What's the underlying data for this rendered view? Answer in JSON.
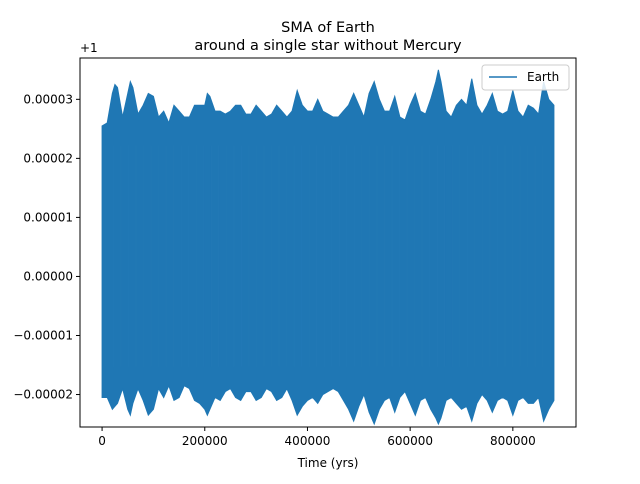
{
  "chart_data": {
    "type": "line",
    "title": "SMA of Earth",
    "subtitle": "around a single star without Mercury",
    "xlabel": "Time (yrs)",
    "ylabel": "",
    "offset_label": "+1",
    "xlim": [
      -43000,
      923000
    ],
    "ylim": [
      -2.55e-05,
      3.7e-05
    ],
    "x_ticks": [
      {
        "value": 0,
        "label": "0"
      },
      {
        "value": 200000,
        "label": "200000"
      },
      {
        "value": 400000,
        "label": "400000"
      },
      {
        "value": 600000,
        "label": "600000"
      },
      {
        "value": 800000,
        "label": "800000"
      }
    ],
    "y_ticks": [
      {
        "value": -2e-05,
        "label": "−0.00002"
      },
      {
        "value": -1e-05,
        "label": "−0.00001"
      },
      {
        "value": 0,
        "label": "0.00000"
      },
      {
        "value": 1e-05,
        "label": "0.00001"
      },
      {
        "value": 2e-05,
        "label": "0.00002"
      },
      {
        "value": 3e-05,
        "label": "0.00003"
      }
    ],
    "legend": {
      "position": "top-right"
    },
    "series": [
      {
        "name": "Earth",
        "color": "#1f77b4",
        "x_range": [
          0,
          880000
        ],
        "envelope": {
          "x": [
            0,
            10000,
            20000,
            25000,
            30000,
            40000,
            50000,
            55000,
            60000,
            70000,
            80000,
            90000,
            100000,
            110000,
            120000,
            130000,
            140000,
            150000,
            160000,
            170000,
            180000,
            190000,
            200000,
            205000,
            210000,
            220000,
            230000,
            240000,
            250000,
            260000,
            270000,
            280000,
            290000,
            300000,
            310000,
            320000,
            330000,
            340000,
            350000,
            360000,
            370000,
            380000,
            390000,
            400000,
            410000,
            420000,
            430000,
            440000,
            450000,
            460000,
            470000,
            480000,
            490000,
            500000,
            510000,
            520000,
            530000,
            540000,
            550000,
            560000,
            570000,
            580000,
            590000,
            600000,
            610000,
            620000,
            630000,
            640000,
            650000,
            655000,
            660000,
            670000,
            680000,
            690000,
            700000,
            710000,
            720000,
            730000,
            740000,
            750000,
            760000,
            770000,
            780000,
            790000,
            800000,
            810000,
            820000,
            830000,
            840000,
            850000,
            860000,
            870000,
            880000
          ],
          "upper": [
            2.55e-05,
            2.6e-05,
            3.1e-05,
            3.25e-05,
            3.2e-05,
            2.7e-05,
            3.1e-05,
            3.3e-05,
            3.2e-05,
            2.75e-05,
            2.9e-05,
            3.1e-05,
            3.05e-05,
            2.7e-05,
            2.8e-05,
            2.6e-05,
            2.9e-05,
            2.8e-05,
            2.7e-05,
            2.7e-05,
            2.9e-05,
            2.9e-05,
            2.9e-05,
            3.1e-05,
            3.05e-05,
            2.8e-05,
            2.8e-05,
            2.75e-05,
            2.8e-05,
            2.9e-05,
            2.9e-05,
            2.75e-05,
            2.75e-05,
            2.9e-05,
            2.8e-05,
            2.7e-05,
            2.75e-05,
            2.9e-05,
            2.8e-05,
            2.7e-05,
            2.8e-05,
            3.15e-05,
            2.9e-05,
            2.8e-05,
            2.8e-05,
            3e-05,
            2.8e-05,
            2.75e-05,
            2.7e-05,
            2.7e-05,
            2.8e-05,
            2.9e-05,
            3.1e-05,
            2.9e-05,
            2.7e-05,
            3.1e-05,
            3.3e-05,
            3e-05,
            2.8e-05,
            2.8e-05,
            3.05e-05,
            2.7e-05,
            2.65e-05,
            2.9e-05,
            3.1e-05,
            2.8e-05,
            2.75e-05,
            3e-05,
            3.3e-05,
            3.5e-05,
            3.3e-05,
            2.8e-05,
            2.7e-05,
            2.9e-05,
            3e-05,
            2.9e-05,
            3.35e-05,
            2.9e-05,
            2.75e-05,
            2.9e-05,
            3.1e-05,
            2.8e-05,
            2.75e-05,
            2.8e-05,
            3.15e-05,
            2.8e-05,
            2.7e-05,
            2.9e-05,
            2.85e-05,
            2.75e-05,
            3.3e-05,
            3e-05,
            2.9e-05
          ],
          "lower": [
            -2.05e-05,
            -2.05e-05,
            -2.25e-05,
            -2.2e-05,
            -2.15e-05,
            -1.9e-05,
            -2.25e-05,
            -2.35e-05,
            -2.15e-05,
            -1.9e-05,
            -2.1e-05,
            -2.35e-05,
            -2.25e-05,
            -1.9e-05,
            -2.05e-05,
            -1.85e-05,
            -2.1e-05,
            -2.05e-05,
            -1.85e-05,
            -1.9e-05,
            -2.1e-05,
            -2.15e-05,
            -2.25e-05,
            -2.35e-05,
            -2.25e-05,
            -2.05e-05,
            -2.1e-05,
            -1.95e-05,
            -1.9e-05,
            -2.05e-05,
            -2.1e-05,
            -1.95e-05,
            -1.95e-05,
            -2.1e-05,
            -2.05e-05,
            -1.9e-05,
            -1.95e-05,
            -2.1e-05,
            -2.05e-05,
            -1.9e-05,
            -2.1e-05,
            -2.35e-05,
            -2.2e-05,
            -2.1e-05,
            -2.05e-05,
            -2.15e-05,
            -2e-05,
            -1.95e-05,
            -1.9e-05,
            -1.95e-05,
            -2.1e-05,
            -2.25e-05,
            -2.45e-05,
            -2.2e-05,
            -2e-05,
            -2.3e-05,
            -2.5e-05,
            -2.25e-05,
            -2.1e-05,
            -2.05e-05,
            -2.3e-05,
            -2.05e-05,
            -1.95e-05,
            -2.15e-05,
            -2.35e-05,
            -2.1e-05,
            -2.05e-05,
            -2.25e-05,
            -2.4e-05,
            -2.5e-05,
            -2.4e-05,
            -2.1e-05,
            -2.05e-05,
            -2.15e-05,
            -2.25e-05,
            -2.2e-05,
            -2.45e-05,
            -2.15e-05,
            -2e-05,
            -2.1e-05,
            -2.3e-05,
            -2.1e-05,
            -2.05e-05,
            -2.1e-05,
            -2.35e-05,
            -2.1e-05,
            -2.05e-05,
            -2.15e-05,
            -2.15e-05,
            -2.05e-05,
            -2.45e-05,
            -2.25e-05,
            -2.1e-05
          ]
        }
      }
    ]
  }
}
